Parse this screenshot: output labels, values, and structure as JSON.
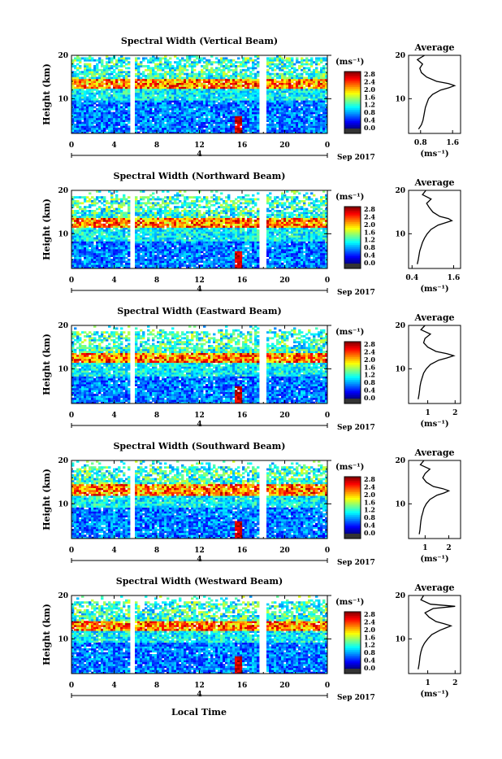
{
  "figure": {
    "xlabel": "Local Time",
    "colorbar_unit": "(ms⁻¹)",
    "colorbar_ticks": [
      "0.0",
      "0.4",
      "0.8",
      "1.2",
      "1.6",
      "2.0",
      "2.4",
      "2.8"
    ],
    "date_label": "Sep 2017",
    "day_label": "4",
    "avg_title": "Average",
    "avg_unit": "(ms⁻¹)"
  },
  "chart_data": [
    {
      "type": "heatmap",
      "title": "Spectral Width (Vertical Beam)",
      "ylabel": "Height (km)",
      "xlim": [
        0,
        24
      ],
      "ylim": [
        2,
        20
      ],
      "xticks": [
        "0",
        "4",
        "8",
        "12",
        "16",
        "20",
        "0"
      ],
      "yticks": [
        "10",
        "20"
      ],
      "data_gaps_hours": [
        [
          5.5,
          6.0
        ],
        [
          17.7,
          18.2
        ]
      ],
      "features": {
        "high_layer_km": [
          12.5,
          14.5
        ],
        "top_coverage_km": 19.5,
        "convective_peak_hour": 15.6
      },
      "average_profile": {
        "title": "Average",
        "xlabel": "(ms⁻¹)",
        "xlim": [
          0.5,
          1.8
        ],
        "xticks": [
          "0.8",
          "1.6"
        ],
        "ylim": [
          2,
          20
        ],
        "yticks": [
          "10",
          "20"
        ],
        "height_km": [
          3,
          4,
          5,
          6,
          7,
          8,
          9,
          10,
          11,
          12,
          12.5,
          13,
          13.5,
          14,
          15,
          16,
          17,
          18,
          19,
          20
        ],
        "width": [
          0.75,
          0.82,
          0.86,
          0.88,
          0.9,
          0.92,
          0.96,
          1.0,
          1.1,
          1.3,
          1.5,
          1.65,
          1.5,
          1.2,
          0.95,
          0.82,
          0.78,
          0.85,
          0.72,
          0.9
        ]
      }
    },
    {
      "type": "heatmap",
      "title": "Spectral Width (Northward Beam)",
      "ylabel": "Height (km)",
      "xlim": [
        0,
        24
      ],
      "ylim": [
        2,
        20
      ],
      "xticks": [
        "0",
        "4",
        "8",
        "12",
        "16",
        "20",
        "0"
      ],
      "yticks": [
        "10",
        "20"
      ],
      "data_gaps_hours": [
        [
          5.5,
          6.0
        ],
        [
          17.7,
          18.2
        ]
      ],
      "features": {
        "high_layer_km": [
          11.5,
          13.5
        ],
        "top_coverage_km": 18.5,
        "convective_peak_hour": 15.6
      },
      "average_profile": {
        "title": "Average",
        "xlabel": "(ms⁻¹)",
        "xlim": [
          0.3,
          1.8
        ],
        "xticks": [
          "0.4",
          "1.6"
        ],
        "ylim": [
          2,
          20
        ],
        "yticks": [
          "10",
          "20"
        ],
        "height_km": [
          3,
          4,
          5,
          6,
          7,
          8,
          9,
          10,
          11,
          12,
          12.5,
          13,
          13.5,
          14,
          15,
          16,
          17,
          18,
          19,
          20
        ],
        "width": [
          0.55,
          0.58,
          0.6,
          0.62,
          0.66,
          0.7,
          0.76,
          0.84,
          0.95,
          1.15,
          1.35,
          1.55,
          1.45,
          1.2,
          1.0,
          0.9,
          0.82,
          0.95,
          0.7,
          0.8
        ]
      }
    },
    {
      "type": "heatmap",
      "title": "Spectral Width (Eastward Beam)",
      "ylabel": "Height (km)",
      "xlim": [
        0,
        24
      ],
      "ylim": [
        2,
        20
      ],
      "xticks": [
        "0",
        "4",
        "8",
        "12",
        "16",
        "20",
        "0"
      ],
      "yticks": [
        "10",
        "20"
      ],
      "data_gaps_hours": [
        [
          5.5,
          6.0
        ],
        [
          17.7,
          18.2
        ]
      ],
      "features": {
        "high_layer_km": [
          11.5,
          13.5
        ],
        "top_coverage_km": 18.5,
        "convective_peak_hour": 15.6
      },
      "average_profile": {
        "title": "Average",
        "xlabel": "(ms⁻¹)",
        "xlim": [
          0.3,
          2.2
        ],
        "xticks": [
          "1",
          "2"
        ],
        "ylim": [
          2,
          20
        ],
        "yticks": [
          "10",
          "20"
        ],
        "height_km": [
          3,
          4,
          5,
          6,
          7,
          8,
          9,
          10,
          11,
          12,
          12.5,
          13,
          13.5,
          14,
          15,
          16,
          17,
          18,
          19,
          20
        ],
        "width": [
          0.65,
          0.68,
          0.7,
          0.72,
          0.75,
          0.8,
          0.85,
          0.95,
          1.1,
          1.4,
          1.7,
          1.95,
          1.7,
          1.3,
          1.0,
          0.85,
          0.9,
          1.1,
          0.75,
          0.9
        ]
      }
    },
    {
      "type": "heatmap",
      "title": "Spectral Width (Southward Beam)",
      "ylabel": "Height (km)",
      "xlim": [
        0,
        24
      ],
      "ylim": [
        2,
        20
      ],
      "xticks": [
        "0",
        "4",
        "8",
        "12",
        "16",
        "20",
        "0"
      ],
      "yticks": [
        "10",
        "20"
      ],
      "data_gaps_hours": [
        [
          5.5,
          6.0
        ],
        [
          17.7,
          18.2
        ]
      ],
      "features": {
        "high_layer_km": [
          12.0,
          14.5
        ],
        "top_coverage_km": 18.5,
        "convective_peak_hour": 15.6
      },
      "average_profile": {
        "title": "Average",
        "xlabel": "(ms⁻¹)",
        "xlim": [
          0.3,
          2.5
        ],
        "xticks": [
          "1",
          "2"
        ],
        "ylim": [
          2,
          20
        ],
        "yticks": [
          "10",
          "20"
        ],
        "height_km": [
          3,
          4,
          5,
          6,
          7,
          8,
          9,
          10,
          11,
          12,
          12.5,
          13,
          13.5,
          14,
          15,
          16,
          17,
          18,
          19,
          20
        ],
        "width": [
          0.75,
          0.78,
          0.8,
          0.82,
          0.85,
          0.9,
          0.95,
          1.05,
          1.2,
          1.5,
          1.8,
          2.0,
          1.75,
          1.35,
          1.05,
          0.9,
          1.0,
          1.2,
          0.8,
          0.95
        ]
      }
    },
    {
      "type": "heatmap",
      "title": "Spectral Width (Westward Beam)",
      "ylabel": "Height (km)",
      "xlim": [
        0,
        24
      ],
      "ylim": [
        2,
        20
      ],
      "xticks": [
        "0",
        "4",
        "8",
        "12",
        "16",
        "20",
        "0"
      ],
      "yticks": [
        "10",
        "20"
      ],
      "data_gaps_hours": [
        [
          5.5,
          6.0
        ],
        [
          17.7,
          18.2
        ]
      ],
      "features": {
        "high_layer_km": [
          12.0,
          14.0
        ],
        "top_coverage_km": 18.5,
        "convective_peak_hour": 15.6
      },
      "average_profile": {
        "title": "Average",
        "xlabel": "(ms⁻¹)",
        "xlim": [
          0.3,
          2.2
        ],
        "xticks": [
          "1",
          "2"
        ],
        "ylim": [
          2,
          20
        ],
        "yticks": [
          "10",
          "20"
        ],
        "height_km": [
          3,
          4,
          5,
          6,
          7,
          8,
          9,
          10,
          11,
          12,
          12.5,
          13,
          13.5,
          14,
          15,
          16,
          17,
          17.5,
          18,
          19,
          20
        ],
        "width": [
          0.65,
          0.68,
          0.7,
          0.72,
          0.75,
          0.8,
          0.88,
          1.0,
          1.15,
          1.45,
          1.65,
          1.85,
          1.6,
          1.3,
          1.05,
          0.9,
          1.2,
          2.0,
          1.1,
          0.75,
          0.85
        ]
      }
    }
  ]
}
